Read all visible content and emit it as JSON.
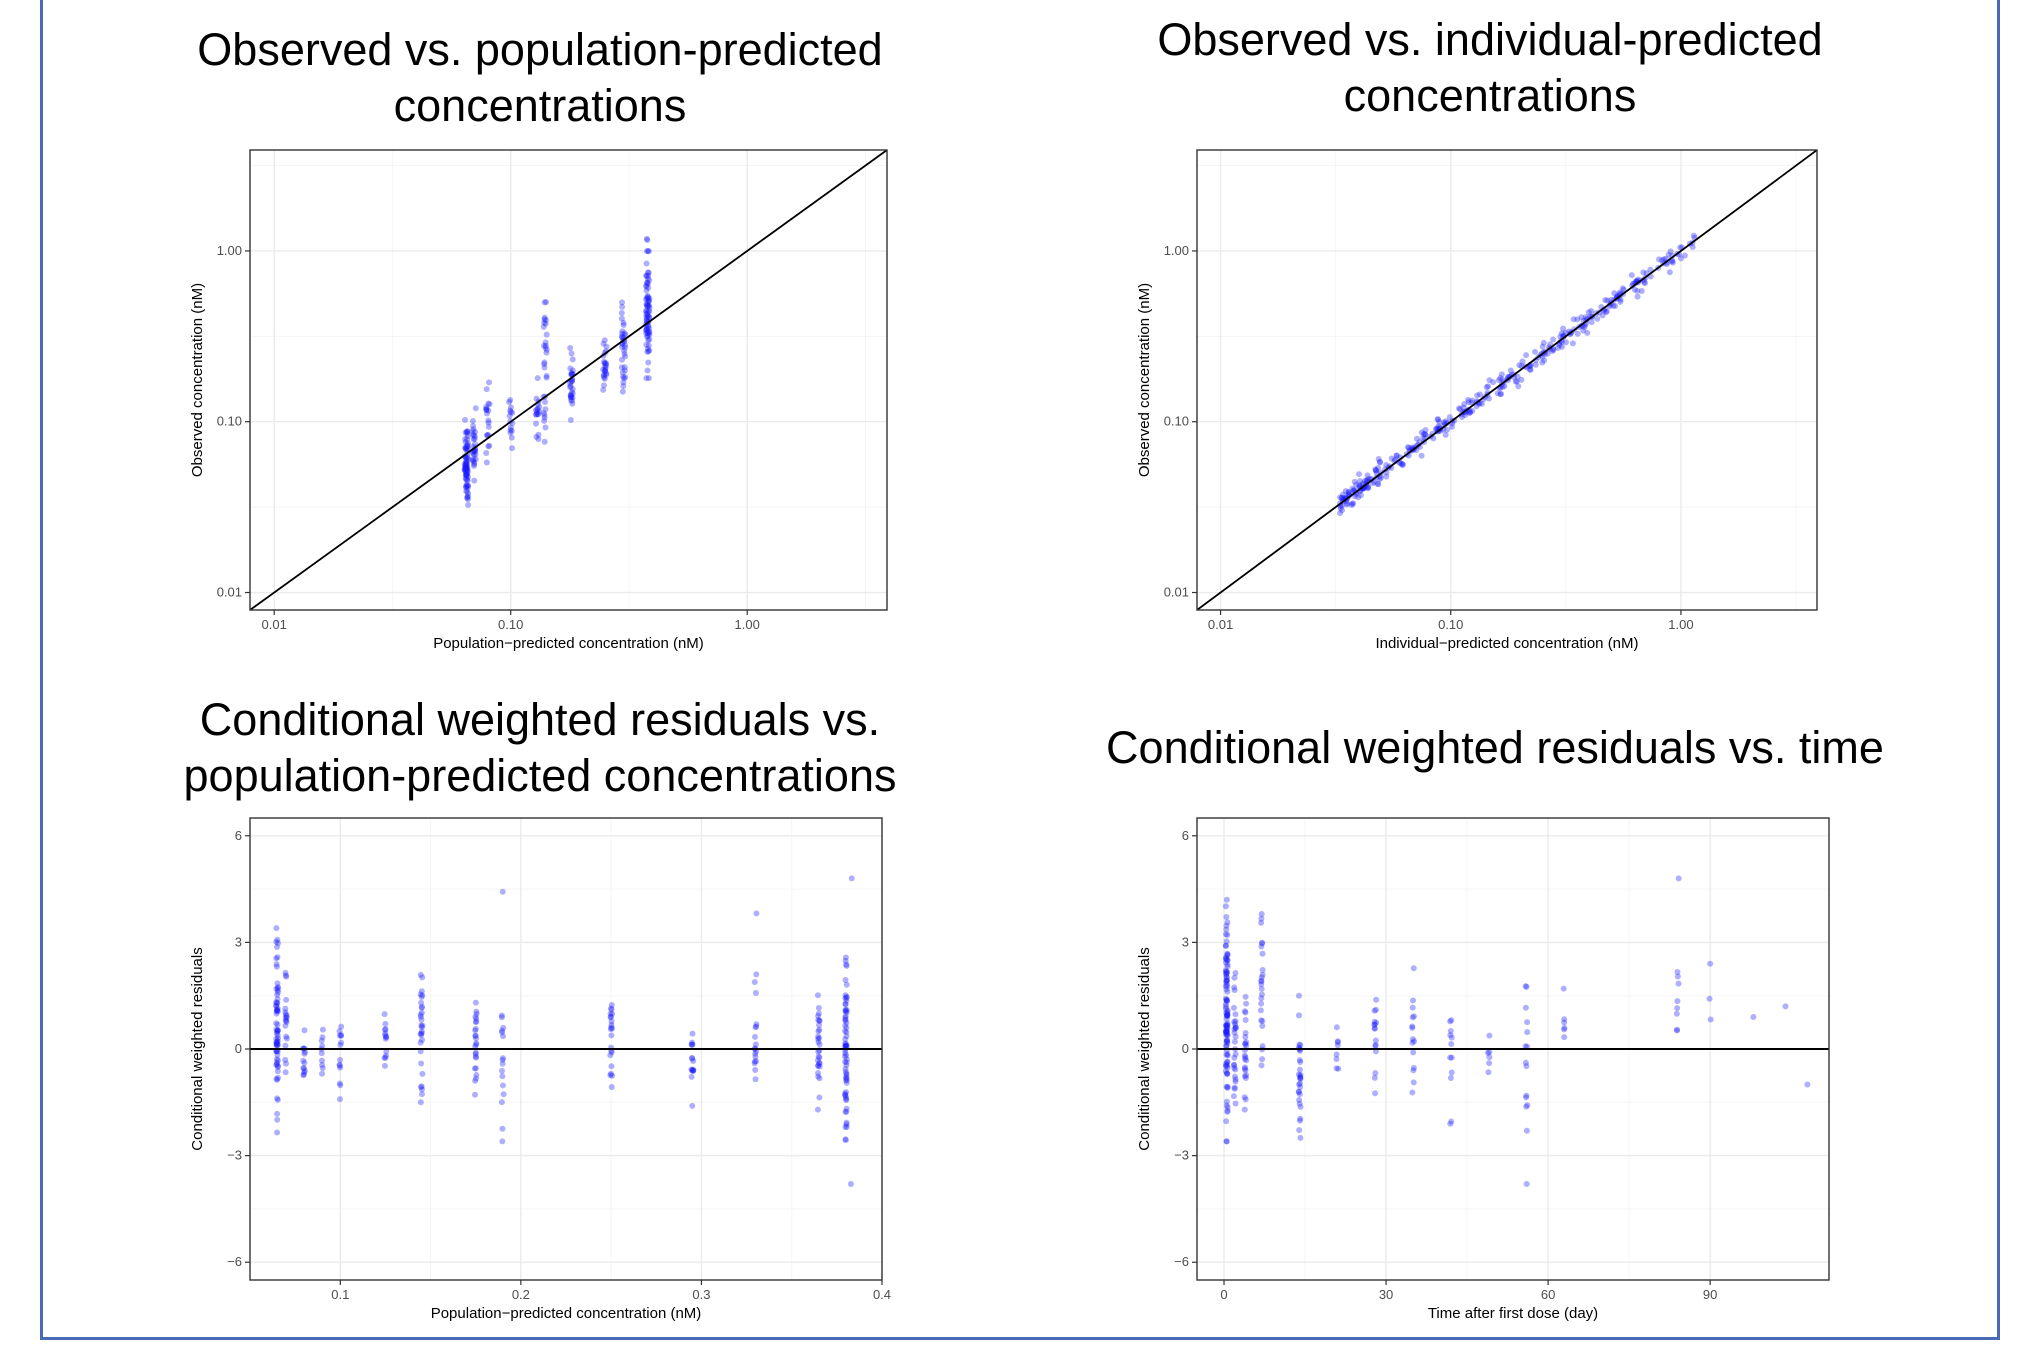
{
  "colors": {
    "point": "#1a1aff",
    "frame": "#4a6ab5",
    "grid_major": "#ebebeb",
    "grid_minor": "#f5f5f5"
  },
  "chart_data": [
    {
      "id": "obs_pred",
      "type": "scatter",
      "title": "Observed vs. population-predicted concentrations",
      "xlabel": "Population−predicted concentration (nM)",
      "ylabel": "Observed concentration (nM)",
      "xscale": "log",
      "yscale": "log",
      "xlim": [
        0.0079,
        3.9
      ],
      "ylim": [
        0.0079,
        3.9
      ],
      "xticks": [
        0.01,
        0.1,
        1.0
      ],
      "yticks": [
        0.01,
        0.1,
        1.0
      ],
      "xtick_labels": [
        "0.01",
        "0.10",
        "1.00"
      ],
      "ytick_labels": [
        "0.01",
        "0.10",
        "1.00"
      ],
      "reference_line": "identity",
      "grid": true,
      "clusters": [
        {
          "x": 0.065,
          "ymin": 0.03,
          "ymax": 0.11,
          "n": 80
        },
        {
          "x": 0.07,
          "ymin": 0.04,
          "ymax": 0.12,
          "n": 30
        },
        {
          "x": 0.08,
          "ymin": 0.05,
          "ymax": 0.17,
          "n": 20
        },
        {
          "x": 0.1,
          "ymin": 0.07,
          "ymax": 0.16,
          "n": 15
        },
        {
          "x": 0.13,
          "ymin": 0.07,
          "ymax": 0.18,
          "n": 18
        },
        {
          "x": 0.14,
          "ymin": 0.055,
          "ymax": 0.78,
          "n": 30
        },
        {
          "x": 0.18,
          "ymin": 0.1,
          "ymax": 0.3,
          "n": 30
        },
        {
          "x": 0.25,
          "ymin": 0.15,
          "ymax": 0.3,
          "n": 25
        },
        {
          "x": 0.3,
          "ymin": 0.15,
          "ymax": 0.5,
          "n": 35
        },
        {
          "x": 0.38,
          "ymin": 0.18,
          "ymax": 1.3,
          "n": 80
        }
      ]
    },
    {
      "id": "obs_ipred",
      "type": "scatter",
      "title": "Observed vs. individual-predicted concentrations",
      "xlabel": "Individual−predicted concentration (nM)",
      "ylabel": "Observed concentration (nM)",
      "xscale": "log",
      "yscale": "log",
      "xlim": [
        0.0079,
        3.9
      ],
      "ylim": [
        0.0079,
        3.9
      ],
      "xticks": [
        0.01,
        0.1,
        1.0
      ],
      "yticks": [
        0.01,
        0.1,
        1.0
      ],
      "xtick_labels": [
        "0.01",
        "0.10",
        "1.00"
      ],
      "ytick_labels": [
        "0.01",
        "0.10",
        "1.00"
      ],
      "reference_line": "identity",
      "grid": true,
      "band": {
        "xmin": 0.033,
        "xmax": 1.15,
        "log_spread": 0.06,
        "n": 380
      }
    },
    {
      "id": "cwres_pred",
      "type": "scatter",
      "title": "Conditional weighted residuals vs. population-predicted concentrations",
      "xlabel": "Population−predicted concentration (nM)",
      "ylabel": "Conditional weighted residuals",
      "xlim": [
        0.05,
        0.4
      ],
      "ylim": [
        -6.5,
        6.5
      ],
      "xticks": [
        0.1,
        0.2,
        0.3,
        0.4
      ],
      "yticks": [
        -6,
        -3,
        0,
        3,
        6
      ],
      "xtick_labels": [
        "0.1",
        "0.2",
        "0.3",
        "0.4"
      ],
      "ytick_labels": [
        "−6",
        "−3",
        "0",
        "3",
        "6"
      ],
      "reference_line": "y=0",
      "grid": true,
      "clusters": [
        {
          "x": 0.065,
          "ymin": -2.6,
          "ymax": 3.4,
          "n": 70
        },
        {
          "x": 0.07,
          "ymin": -1.5,
          "ymax": 2.7,
          "n": 20
        },
        {
          "x": 0.08,
          "ymin": -1.4,
          "ymax": 1.0,
          "n": 14
        },
        {
          "x": 0.09,
          "ymin": -1.0,
          "ymax": 1.0,
          "n": 10
        },
        {
          "x": 0.1,
          "ymin": -1.5,
          "ymax": 1.3,
          "n": 14
        },
        {
          "x": 0.125,
          "ymin": -1.0,
          "ymax": 1.5,
          "n": 14
        },
        {
          "x": 0.145,
          "ymin": -2.2,
          "ymax": 2.6,
          "n": 30
        },
        {
          "x": 0.175,
          "ymin": -1.6,
          "ymax": 1.8,
          "n": 25
        },
        {
          "x": 0.19,
          "ymin": -2.6,
          "ymax": 1.8,
          "n": 16
        },
        {
          "x": 0.19,
          "ymin": 4.4,
          "ymax": 4.5,
          "n": 1
        },
        {
          "x": 0.25,
          "ymin": -1.3,
          "ymax": 1.8,
          "n": 22
        },
        {
          "x": 0.295,
          "ymin": -1.6,
          "ymax": 1.2,
          "n": 16
        },
        {
          "x": 0.33,
          "ymin": -2.2,
          "ymax": 2.1,
          "n": 18
        },
        {
          "x": 0.33,
          "ymin": 3.8,
          "ymax": 3.85,
          "n": 1
        },
        {
          "x": 0.365,
          "ymin": -2.0,
          "ymax": 1.8,
          "n": 30
        },
        {
          "x": 0.38,
          "ymin": -2.6,
          "ymax": 3.0,
          "n": 70
        },
        {
          "x": 0.383,
          "ymin": 4.8,
          "ymax": 4.8,
          "n": 1
        },
        {
          "x": 0.383,
          "ymin": -3.8,
          "ymax": -3.8,
          "n": 1
        }
      ]
    },
    {
      "id": "cwres_time",
      "type": "scatter",
      "title": "Conditional weighted residuals vs. time",
      "xlabel": "Time after first dose (day)",
      "ylabel": "Conditional weighted residuals",
      "xlim": [
        -5,
        112
      ],
      "ylim": [
        -6.5,
        6.5
      ],
      "xticks": [
        0,
        30,
        60,
        90
      ],
      "yticks": [
        -6,
        -3,
        0,
        3,
        6
      ],
      "xtick_labels": [
        "0",
        "30",
        "60",
        "90"
      ],
      "ytick_labels": [
        "−6",
        "−3",
        "0",
        "3",
        "6"
      ],
      "reference_line": "y=0",
      "grid": true,
      "clusters": [
        {
          "x": 0.5,
          "ymin": -2.6,
          "ymax": 4.4,
          "n": 110
        },
        {
          "x": 2,
          "ymin": -2.0,
          "ymax": 2.2,
          "n": 30
        },
        {
          "x": 4,
          "ymin": -2.0,
          "ymax": 2.0,
          "n": 25
        },
        {
          "x": 7,
          "ymin": -1.8,
          "ymax": 3.8,
          "n": 25
        },
        {
          "x": 14,
          "ymin": -2.5,
          "ymax": 1.5,
          "n": 30
        },
        {
          "x": 21,
          "ymin": -1.0,
          "ymax": 0.8,
          "n": 8
        },
        {
          "x": 28,
          "ymin": -1.8,
          "ymax": 2.5,
          "n": 16
        },
        {
          "x": 35,
          "ymin": -2.2,
          "ymax": 3.0,
          "n": 15
        },
        {
          "x": 42,
          "ymin": -2.3,
          "ymax": 1.9,
          "n": 12
        },
        {
          "x": 49,
          "ymin": -1.0,
          "ymax": 0.8,
          "n": 6
        },
        {
          "x": 56,
          "ymin": -2.3,
          "ymax": 2.6,
          "n": 14
        },
        {
          "x": 56,
          "ymin": -3.8,
          "ymax": -3.8,
          "n": 1
        },
        {
          "x": 63,
          "ymin": -0.5,
          "ymax": 1.7,
          "n": 6
        },
        {
          "x": 84,
          "ymin": -0.3,
          "ymax": 2.6,
          "n": 8
        },
        {
          "x": 84,
          "ymin": 4.8,
          "ymax": 4.8,
          "n": 1
        },
        {
          "x": 90,
          "ymin": 0.5,
          "ymax": 2.4,
          "n": 3
        },
        {
          "x": 98,
          "ymin": 0.9,
          "ymax": 0.9,
          "n": 1
        },
        {
          "x": 104,
          "ymin": 1.2,
          "ymax": 1.2,
          "n": 1
        },
        {
          "x": 108,
          "ymin": -1.0,
          "ymax": -1.0,
          "n": 1
        }
      ]
    }
  ]
}
